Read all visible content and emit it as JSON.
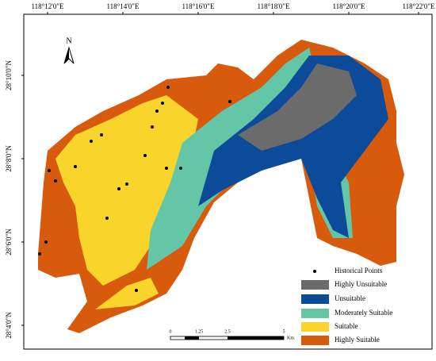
{
  "north": "N",
  "longitude_labels": [
    "118°12'0\"E",
    "118°14'0\"E",
    "118°16'0\"E",
    "118°18'0\"E",
    "118°20'0\"E",
    "118°22'0\"E"
  ],
  "latitude_labels": [
    "28°10'0\"N",
    "28°8'0\"N",
    "28°6'0\"N",
    "28°4'0\"N"
  ],
  "legend": {
    "items": [
      {
        "label": "Historical Points",
        "color": "#000000"
      },
      {
        "label": "Highly Unsuitable",
        "color": "#6b6b6b"
      },
      {
        "label": "Unsuitable",
        "color": "#0b4b99"
      },
      {
        "label": "Moderately Suitable",
        "color": "#63c7a7"
      },
      {
        "label": "Suitable",
        "color": "#f9d42a"
      },
      {
        "label": "Highly Suitable",
        "color": "#d85a0c"
      }
    ]
  },
  "scale_bar": {
    "labels": [
      "0",
      "1.25",
      "2.5",
      "5"
    ],
    "unit": "Km"
  }
}
